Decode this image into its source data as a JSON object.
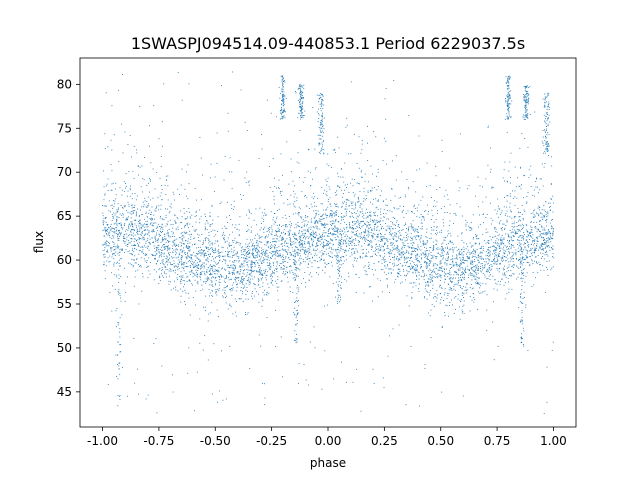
{
  "chart_data": {
    "type": "scatter",
    "title": "1SWASPJ094514.09-440853.1 Period 6229037.5s",
    "xlabel": "phase",
    "ylabel": "flux",
    "xlim": [
      -1.1,
      1.1
    ],
    "ylim": [
      41,
      83
    ],
    "xticks": [
      "-1.00",
      "-0.75",
      "-0.50",
      "-0.25",
      "0.00",
      "0.25",
      "0.50",
      "0.75",
      "1.00"
    ],
    "xtick_values": [
      -1.0,
      -0.75,
      -0.5,
      -0.25,
      0.0,
      0.25,
      0.5,
      0.75,
      1.0
    ],
    "yticks": [
      "45",
      "50",
      "55",
      "60",
      "65",
      "70",
      "75",
      "80"
    ],
    "ytick_values": [
      45,
      50,
      55,
      60,
      65,
      70,
      75,
      80
    ],
    "grid": false,
    "legend": "none",
    "point_color": "#1f77b4",
    "series": [
      {
        "baseline_profile": {
          "phase": [
            -1.0,
            -0.9,
            -0.8,
            -0.7,
            -0.6,
            -0.5,
            -0.4,
            -0.3,
            -0.2,
            -0.1,
            0.0,
            0.1,
            0.2,
            0.3,
            0.4,
            0.5,
            0.6,
            0.7,
            0.8,
            0.9,
            1.0
          ],
          "center_flux": [
            63,
            63.5,
            63,
            61.5,
            60.5,
            59.5,
            59,
            60,
            61.5,
            62.5,
            63,
            63.5,
            63,
            61.5,
            60.5,
            59.5,
            59,
            60,
            61.5,
            62.5,
            63
          ],
          "band_halfwidth": [
            4,
            4.5,
            4.5,
            4,
            4,
            4.5,
            4,
            4,
            4,
            4,
            4,
            4.5,
            4.5,
            4,
            4,
            4.5,
            4,
            4,
            4,
            4,
            4
          ]
        },
        "high_clusters": [
          {
            "phase": -0.2,
            "flux_range": [
              76,
              81
            ]
          },
          {
            "phase": -0.12,
            "flux_range": [
              76,
              80
            ]
          },
          {
            "phase": -0.03,
            "flux_range": [
              72,
              79
            ]
          },
          {
            "phase": 0.8,
            "flux_range": [
              76,
              81
            ]
          },
          {
            "phase": 0.88,
            "flux_range": [
              76,
              80
            ]
          },
          {
            "phase": 0.97,
            "flux_range": [
              72,
              79
            ]
          }
        ],
        "dips": [
          {
            "phase": -0.93,
            "flux_min": 43
          },
          {
            "phase": -0.14,
            "flux_min": 50
          },
          {
            "phase": 0.05,
            "flux_min": 55
          },
          {
            "phase": 0.86,
            "flux_min": 50
          }
        ]
      }
    ]
  }
}
